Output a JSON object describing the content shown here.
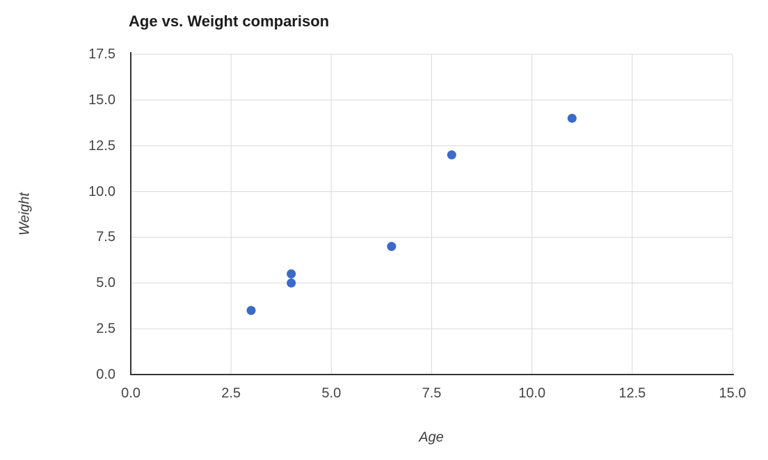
{
  "chart_data": {
    "type": "scatter",
    "title": "Age vs. Weight comparison",
    "xlabel": "Age",
    "ylabel": "Weight",
    "x": [
      3,
      4,
      4,
      6.5,
      8,
      11
    ],
    "y": [
      3.5,
      5,
      5.5,
      7,
      12,
      14
    ],
    "xlim": [
      0,
      15
    ],
    "ylim": [
      0,
      17.5
    ],
    "xticks": [
      0,
      2.5,
      5,
      7.5,
      10,
      12.5,
      15
    ],
    "yticks": [
      0,
      2.5,
      5,
      7.5,
      10,
      12.5,
      15,
      17.5
    ],
    "tick_label_format": "one-decimal",
    "grid": true,
    "legend_position": "none",
    "marker": {
      "shape": "circle",
      "radius_px": 6.5,
      "color": "#3b6ac9"
    },
    "colors": {
      "point": "#3b6ac9",
      "grid": "#d9d9d9",
      "axis": "#333333",
      "tick_label": "#444444",
      "title": "#1c1c1c",
      "axis_label": "#3d3d3d",
      "background": "#ffffff"
    }
  }
}
